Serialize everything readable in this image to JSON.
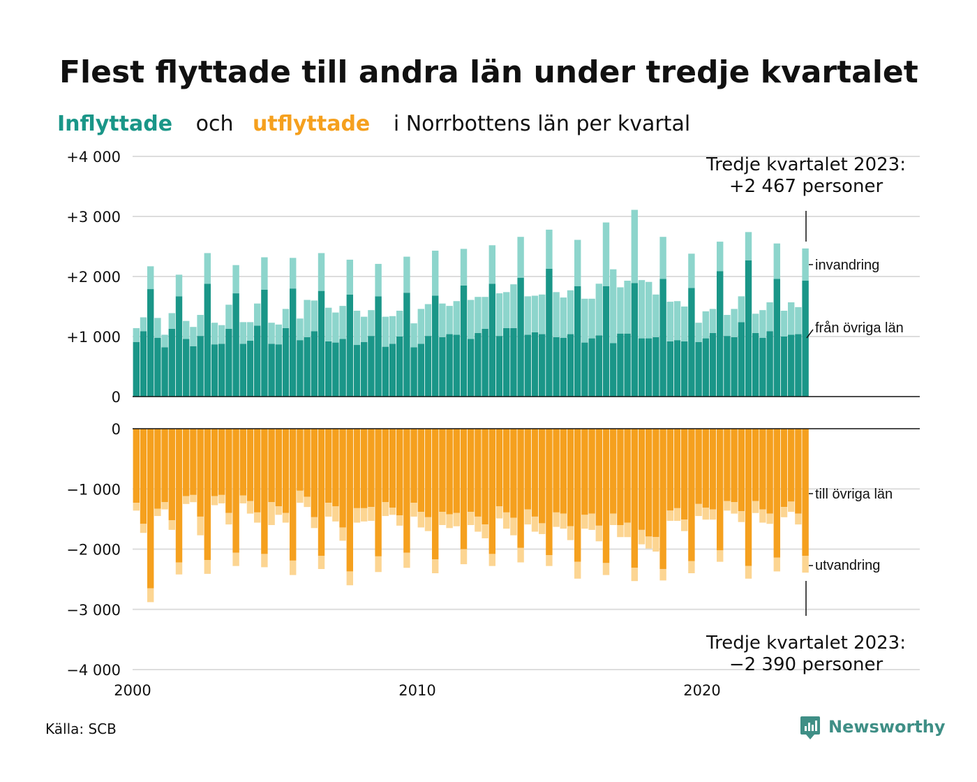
{
  "chart_data": {
    "type": "bar",
    "title": "Flest flyttade till andra län under tredje kvartalet",
    "subtitle": {
      "part1": "Inflyttade",
      "part2": "och",
      "part3": "utflyttade",
      "part4": "i Norrbottens län per kvartal"
    },
    "x": {
      "start_year": 2000,
      "quarters": 95,
      "ticks": [
        "2000",
        "2010",
        "2020"
      ],
      "range": [
        2000,
        2028
      ]
    },
    "upper": {
      "ylim": [
        0,
        4000
      ],
      "ticks": [
        "0",
        "+1 000",
        "+2 000",
        "+3 000",
        "+4 000"
      ],
      "series": [
        {
          "name": "från övriga län",
          "color": "#1a9688",
          "values": [
            910,
            1090,
            1790,
            980,
            820,
            1130,
            1670,
            960,
            840,
            1010,
            1880,
            870,
            880,
            1130,
            1720,
            880,
            930,
            1180,
            1780,
            880,
            870,
            1140,
            1800,
            940,
            990,
            1090,
            1760,
            920,
            900,
            960,
            1700,
            860,
            910,
            1010,
            1670,
            830,
            880,
            1000,
            1730,
            820,
            880,
            1010,
            1680,
            990,
            1040,
            1030,
            1850,
            960,
            1060,
            1130,
            1880,
            1010,
            1140,
            1140,
            1980,
            1030,
            1070,
            1040,
            2130,
            990,
            980,
            1040,
            1840,
            900,
            970,
            1020,
            1840,
            890,
            1050,
            1050,
            1890,
            970,
            970,
            990,
            1960,
            920,
            940,
            920,
            1810,
            910,
            970,
            1060,
            2090,
            1010,
            990,
            1240,
            2270,
            1060,
            980,
            1090,
            1960,
            1000,
            1030,
            1040,
            1930
          ]
        },
        {
          "name": "invandring",
          "color": "#8dd5cc",
          "values": [
            230,
            230,
            380,
            330,
            210,
            260,
            360,
            300,
            320,
            350,
            510,
            360,
            310,
            400,
            470,
            360,
            310,
            370,
            540,
            350,
            330,
            320,
            510,
            360,
            620,
            510,
            630,
            560,
            500,
            550,
            580,
            570,
            420,
            430,
            540,
            500,
            460,
            430,
            600,
            400,
            580,
            530,
            750,
            560,
            470,
            560,
            610,
            650,
            600,
            530,
            640,
            710,
            600,
            730,
            680,
            640,
            610,
            660,
            650,
            750,
            670,
            730,
            770,
            730,
            660,
            860,
            1060,
            1230,
            770,
            880,
            1220,
            970,
            940,
            710,
            700,
            660,
            650,
            580,
            570,
            320,
            450,
            400,
            490,
            350,
            470,
            430,
            470,
            320,
            460,
            480,
            590,
            430,
            540,
            450,
            537
          ]
        }
      ]
    },
    "lower": {
      "ylim": [
        -4000,
        0
      ],
      "ticks": [
        "0",
        "−1 000",
        "−2 000",
        "−3 000",
        "−4 000"
      ],
      "series": [
        {
          "name": "till övriga län",
          "color": "#f5a01e",
          "values": [
            -1230,
            -1580,
            -2650,
            -1330,
            -1220,
            -1520,
            -2220,
            -1120,
            -1100,
            -1460,
            -2180,
            -1120,
            -1100,
            -1400,
            -2060,
            -1110,
            -1200,
            -1390,
            -2080,
            -1220,
            -1290,
            -1400,
            -2190,
            -1030,
            -1130,
            -1470,
            -2110,
            -1230,
            -1290,
            -1640,
            -2370,
            -1320,
            -1320,
            -1300,
            -2120,
            -1220,
            -1310,
            -1440,
            -2060,
            -1230,
            -1380,
            -1470,
            -2170,
            -1380,
            -1420,
            -1400,
            -2000,
            -1380,
            -1460,
            -1590,
            -2080,
            -1290,
            -1390,
            -1480,
            -1980,
            -1340,
            -1460,
            -1570,
            -2100,
            -1390,
            -1410,
            -1620,
            -2210,
            -1430,
            -1410,
            -1610,
            -2230,
            -1410,
            -1600,
            -1560,
            -2310,
            -1680,
            -1790,
            -1800,
            -2330,
            -1360,
            -1320,
            -1510,
            -2200,
            -1250,
            -1310,
            -1340,
            -2020,
            -1200,
            -1220,
            -1370,
            -2280,
            -1200,
            -1340,
            -1410,
            -2140,
            -1300,
            -1210,
            -1410,
            -2110
          ]
        },
        {
          "name": "utvandring",
          "color": "#fcd592",
          "values": [
            -130,
            -150,
            -230,
            -120,
            -120,
            -160,
            -200,
            -130,
            -120,
            -310,
            -230,
            -150,
            -140,
            -190,
            -220,
            -130,
            -210,
            -170,
            -220,
            -380,
            -140,
            -160,
            -240,
            -200,
            -170,
            -180,
            -220,
            -230,
            -250,
            -220,
            -230,
            -240,
            -220,
            -230,
            -260,
            -230,
            -120,
            -170,
            -250,
            -230,
            -260,
            -230,
            -230,
            -220,
            -230,
            -220,
            -250,
            -220,
            -250,
            -230,
            -200,
            -200,
            -270,
            -290,
            -240,
            -250,
            -250,
            -180,
            -180,
            -240,
            -250,
            -230,
            -280,
            -230,
            -270,
            -260,
            -200,
            -190,
            -200,
            -240,
            -220,
            -240,
            -200,
            -240,
            -190,
            -170,
            -210,
            -190,
            -200,
            -200,
            -200,
            -170,
            -190,
            -160,
            -190,
            -180,
            -210,
            -200,
            -220,
            -170,
            -230,
            -170,
            -170,
            -180,
            -280
          ]
        }
      ]
    },
    "annotations": {
      "top_line1": "Tredje kvartalet 2023:",
      "top_line2": "+2 467 personer",
      "bottom_line1": "Tredje kvartalet 2023:",
      "bottom_line2": "−2 390 personer"
    },
    "legend_placement": "right, at end of series"
  },
  "footer": {
    "source": "Källa: SCB",
    "brand": "Newsworthy",
    "brand_color": "#3f8f86",
    "logo_icon": "newsworthy-logo-icon"
  }
}
